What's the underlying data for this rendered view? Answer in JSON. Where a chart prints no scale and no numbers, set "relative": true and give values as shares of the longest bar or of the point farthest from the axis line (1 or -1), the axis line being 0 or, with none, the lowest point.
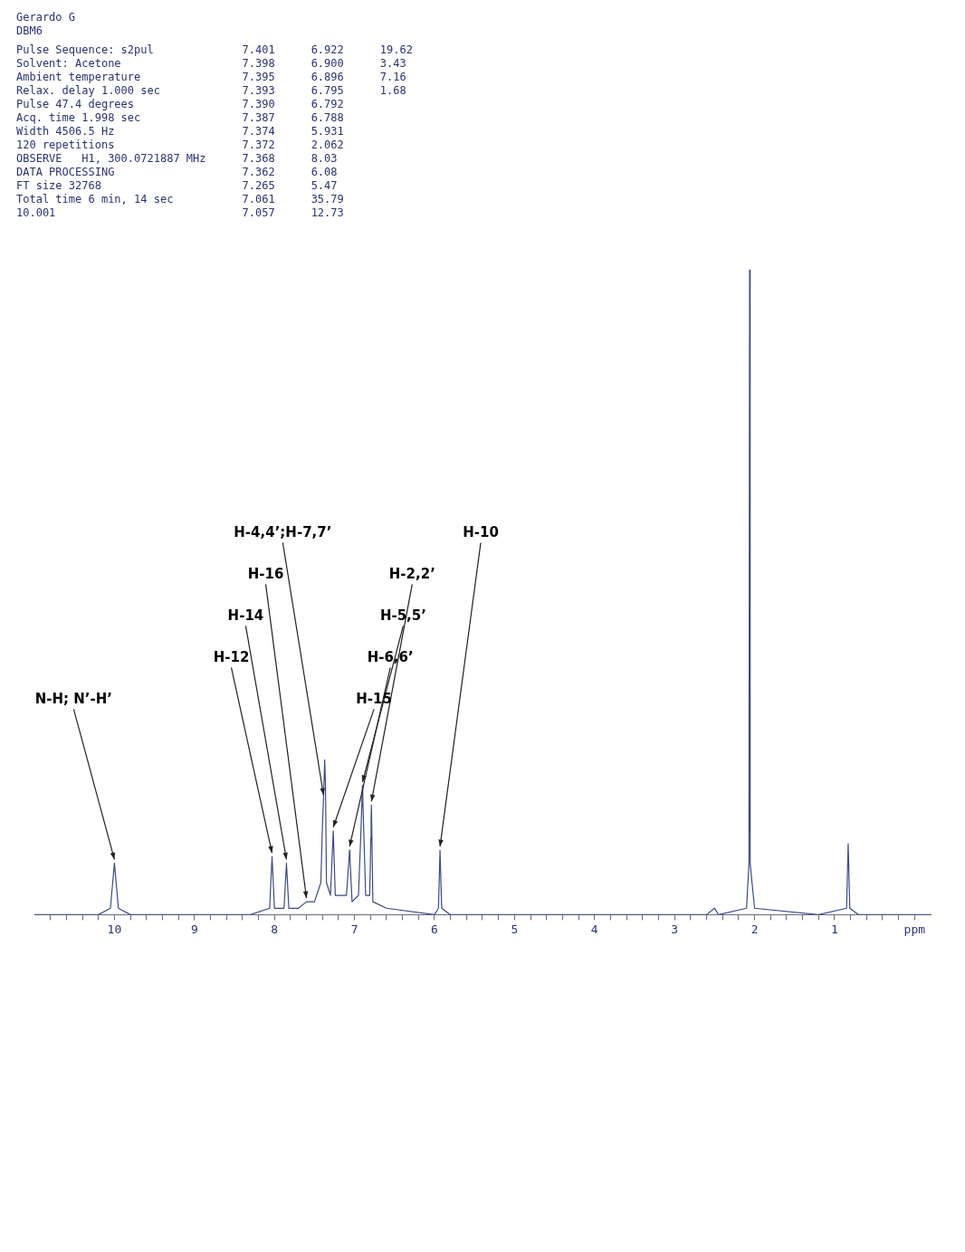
{
  "chart_data": {
    "type": "line",
    "title": "Gerardo G",
    "subtitle": "DBM6",
    "relative": true,
    "marker": "none",
    "grid": false,
    "legend": false,
    "annotations": [
      "Pulse Sequence: s2pul",
      "Solvent: Acetone",
      "Ambient temperature",
      "Relax. delay 1.000 sec",
      "Pulse 47.4 degrees",
      "Acq. time 1.998 sec",
      "Width 4506.5 Hz",
      "120 repetitions",
      "OBSERVE   H1, 300.0721887 MHz",
      "DATA PROCESSING",
      "FT size 32768",
      "Total time 6 min, 14 sec",
      "10.001",
      "7.401",
      "7.398",
      "7.395",
      "7.393",
      "7.390",
      "7.387",
      "7.374",
      "7.372",
      "7.368",
      "7.362",
      "7.265",
      "7.061",
      "7.057",
      "6.922",
      "6.900",
      "6.896",
      "6.795",
      "6.792",
      "6.788",
      "5.931",
      "2.062",
      "8.03",
      "6.08",
      "5.47",
      "35.79",
      "12.73",
      "19.62",
      "3.43",
      "7.16",
      "1.68",
      {
        "text": "N-H; N’-H’",
        "x": 10.0,
        "y": 0.08
      },
      {
        "text": "H-12",
        "x": 8.03,
        "y": 0.09
      },
      {
        "text": "H-14",
        "x": 7.85,
        "y": 0.08
      },
      {
        "text": "H-16",
        "x": 7.6,
        "y": 0.02
      },
      {
        "text": "H-4,4’;H-7,7’",
        "x": 7.387,
        "y": 0.18
      },
      {
        "text": "H-15",
        "x": 7.265,
        "y": 0.13
      },
      {
        "text": "H-6,6’",
        "x": 7.061,
        "y": 0.1
      },
      {
        "text": "H-5,5’",
        "x": 6.9,
        "y": 0.2
      },
      {
        "text": "H-2,2’",
        "x": 6.788,
        "y": 0.17
      },
      {
        "text": "H-10",
        "x": 5.931,
        "y": 0.1
      }
    ],
    "xlim": [
      11,
      -0.2
    ],
    "xticks": [
      {
        "value": 0,
        "label": "ppm"
      },
      {
        "value": 0.2,
        "label": null
      },
      {
        "value": 0.4,
        "label": null
      },
      {
        "value": 0.6,
        "label": null
      },
      {
        "value": 0.8,
        "label": null
      },
      1,
      {
        "value": 1.2,
        "label": null
      },
      {
        "value": 1.4,
        "label": null
      },
      {
        "value": 1.6,
        "label": null
      },
      {
        "value": 1.8,
        "label": null
      },
      2,
      {
        "value": 2.2,
        "label": null
      },
      {
        "value": 2.4,
        "label": null
      },
      {
        "value": 2.6,
        "label": null
      },
      {
        "value": 2.8,
        "label": null
      },
      3,
      {
        "value": 3.2,
        "label": null
      },
      {
        "value": 3.4,
        "label": null
      },
      {
        "value": 3.6,
        "label": null
      },
      {
        "value": 3.8,
        "label": null
      },
      4,
      {
        "value": 4.2,
        "label": null
      },
      {
        "value": 4.4,
        "label": null
      },
      {
        "value": 4.6,
        "label": null
      },
      {
        "value": 4.8,
        "label": null
      },
      5,
      {
        "value": 5.2,
        "label": null
      },
      {
        "value": 5.4,
        "label": null
      },
      {
        "value": 5.6,
        "label": null
      },
      {
        "value": 5.8,
        "label": null
      },
      6,
      {
        "value": 6.2,
        "label": null
      },
      {
        "value": 6.4,
        "label": null
      },
      {
        "value": 6.6,
        "label": null
      },
      {
        "value": 6.8,
        "label": null
      },
      7,
      {
        "value": 7.2,
        "label": null
      },
      {
        "value": 7.4,
        "label": null
      },
      {
        "value": 7.6,
        "label": null
      },
      {
        "value": 7.8,
        "label": null
      },
      8,
      {
        "value": 8.2,
        "label": null
      },
      {
        "value": 8.4,
        "label": null
      },
      {
        "value": 8.6,
        "label": null
      },
      {
        "value": 8.8,
        "label": null
      },
      9,
      {
        "value": 9.2,
        "label": null
      },
      {
        "value": 9.4,
        "label": null
      },
      {
        "value": 9.6,
        "label": null
      },
      {
        "value": 9.8,
        "label": null
      },
      10,
      {
        "value": 10.2,
        "label": null
      },
      {
        "value": 10.4,
        "label": null
      },
      {
        "value": 10.6,
        "label": null
      },
      {
        "value": 10.8,
        "label": null
      }
    ],
    "series": [
      {
        "type": "line",
        "color": "#3a4a8a",
        "x": [
          11,
          10.2,
          10.05,
          10.0,
          9.95,
          9.8,
          8.3,
          8.06,
          8.03,
          8.0,
          7.88,
          7.85,
          7.82,
          7.7,
          7.6,
          7.5,
          7.42,
          7.4,
          7.387,
          7.372,
          7.362,
          7.35,
          7.3,
          7.265,
          7.24,
          7.1,
          7.061,
          7.057,
          7.03,
          6.95,
          6.922,
          6.9,
          6.896,
          6.86,
          6.81,
          6.795,
          6.792,
          6.788,
          6.77,
          6.6,
          6.0,
          5.95,
          5.931,
          5.91,
          5.8,
          2.6,
          2.5,
          2.45,
          2.1,
          2.07,
          2.062,
          2.055,
          2.04,
          2.0,
          1.2,
          0.85,
          0.83,
          0.81,
          0.7,
          -0.2
        ],
        "values": [
          0,
          0,
          0.01,
          0.08,
          0.01,
          0,
          0,
          0.01,
          0.09,
          0.01,
          0.01,
          0.08,
          0.01,
          0.01,
          0.02,
          0.02,
          0.05,
          0.14,
          0.18,
          0.24,
          0.2,
          0.05,
          0.03,
          0.13,
          0.03,
          0.03,
          0.1,
          0.09,
          0.02,
          0.03,
          0.12,
          0.2,
          0.18,
          0.03,
          0.03,
          0.12,
          0.15,
          0.17,
          0.02,
          0.01,
          0,
          0.01,
          0.1,
          0.01,
          0,
          0,
          0.01,
          0,
          0.01,
          0.08,
          1,
          0.08,
          0.06,
          0.01,
          0,
          0.01,
          0.11,
          0.01,
          0,
          0
        ]
      }
    ]
  }
}
